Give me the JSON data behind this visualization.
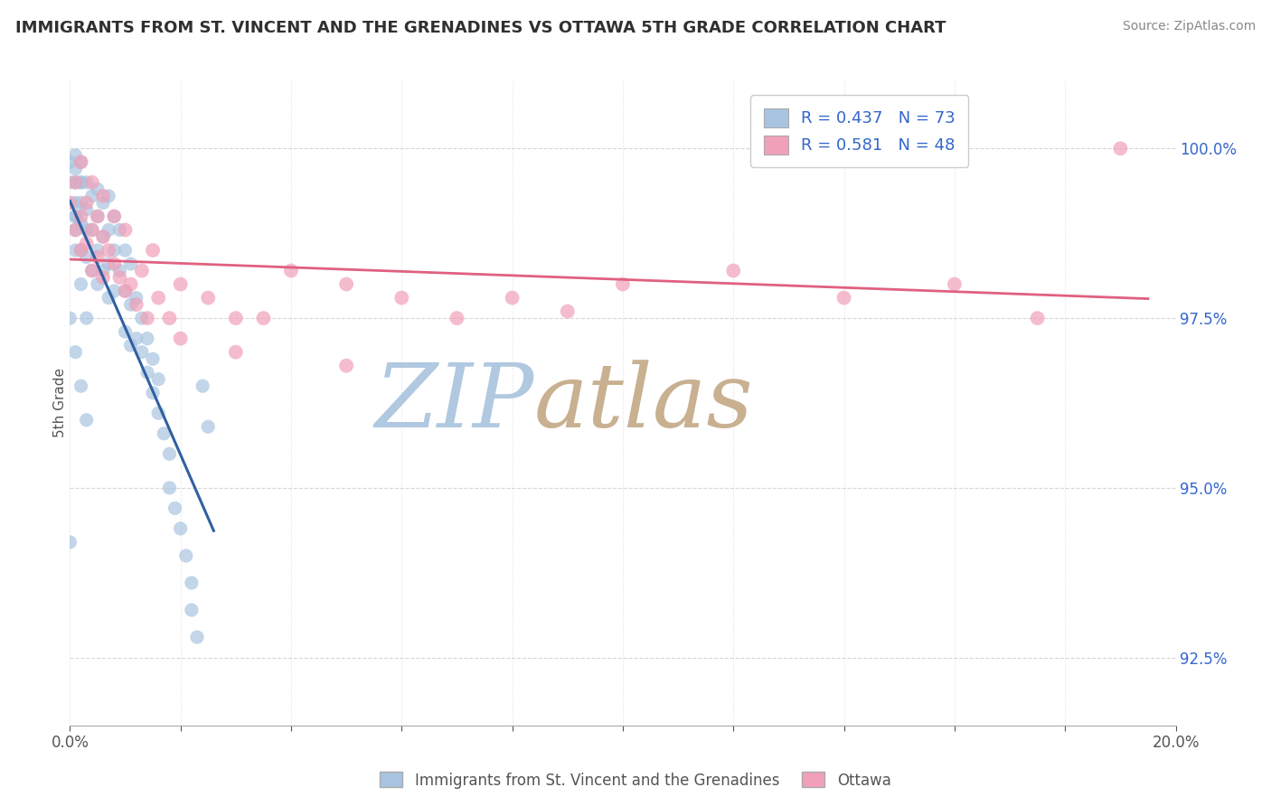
{
  "title": "IMMIGRANTS FROM ST. VINCENT AND THE GRENADINES VS OTTAWA 5TH GRADE CORRELATION CHART",
  "source": "Source: ZipAtlas.com",
  "ylabel": "5th Grade",
  "legend_label_blue": "Immigrants from St. Vincent and the Grenadines",
  "legend_label_pink": "Ottawa",
  "R_blue": 0.437,
  "N_blue": 73,
  "R_pink": 0.581,
  "N_pink": 48,
  "blue_color": "#a8c4e0",
  "pink_color": "#f0a0b8",
  "blue_line_color": "#3060a0",
  "pink_line_color": "#e06080",
  "watermark_zip_color": "#b0c8e0",
  "watermark_atlas_color": "#c8b090",
  "title_color": "#303030",
  "annotation_color": "#3366cc",
  "xlim": [
    0.0,
    0.2
  ],
  "ylim": [
    91.5,
    101.0
  ],
  "yticks": [
    92.5,
    95.0,
    97.5,
    100.0
  ],
  "yticklabels": [
    "92.5%",
    "95.0%",
    "97.5%",
    "100.0%"
  ],
  "blue_scatter_x": [
    0.0,
    0.0,
    0.001,
    0.001,
    0.001,
    0.001,
    0.001,
    0.002,
    0.002,
    0.002,
    0.002,
    0.002,
    0.003,
    0.003,
    0.003,
    0.003,
    0.004,
    0.004,
    0.004,
    0.005,
    0.005,
    0.005,
    0.005,
    0.006,
    0.006,
    0.006,
    0.007,
    0.007,
    0.007,
    0.007,
    0.008,
    0.008,
    0.008,
    0.009,
    0.009,
    0.01,
    0.01,
    0.01,
    0.011,
    0.011,
    0.011,
    0.012,
    0.012,
    0.013,
    0.013,
    0.014,
    0.014,
    0.015,
    0.015,
    0.016,
    0.016,
    0.017,
    0.018,
    0.018,
    0.019,
    0.02,
    0.021,
    0.022,
    0.022,
    0.023,
    0.024,
    0.025,
    0.0,
    0.001,
    0.002,
    0.003,
    0.001,
    0.002,
    0.003,
    0.001,
    0.002,
    0.001,
    0.0
  ],
  "blue_scatter_y": [
    99.8,
    99.5,
    99.9,
    99.7,
    99.5,
    99.2,
    99.0,
    99.8,
    99.5,
    99.2,
    98.9,
    98.5,
    99.5,
    99.1,
    98.8,
    98.4,
    99.3,
    98.8,
    98.2,
    99.4,
    99.0,
    98.5,
    98.0,
    99.2,
    98.7,
    98.2,
    99.3,
    98.8,
    98.3,
    97.8,
    99.0,
    98.5,
    97.9,
    98.8,
    98.2,
    98.5,
    97.9,
    97.3,
    98.3,
    97.7,
    97.1,
    97.8,
    97.2,
    97.5,
    97.0,
    97.2,
    96.7,
    96.9,
    96.4,
    96.6,
    96.1,
    95.8,
    95.5,
    95.0,
    94.7,
    94.4,
    94.0,
    93.6,
    93.2,
    92.8,
    96.5,
    95.9,
    97.5,
    97.0,
    96.5,
    96.0,
    98.5,
    98.0,
    97.5,
    99.0,
    99.5,
    98.8,
    94.2
  ],
  "pink_scatter_x": [
    0.0,
    0.001,
    0.001,
    0.002,
    0.002,
    0.003,
    0.003,
    0.004,
    0.004,
    0.005,
    0.005,
    0.006,
    0.006,
    0.007,
    0.008,
    0.009,
    0.01,
    0.011,
    0.012,
    0.013,
    0.014,
    0.016,
    0.018,
    0.02,
    0.025,
    0.03,
    0.035,
    0.04,
    0.05,
    0.06,
    0.07,
    0.08,
    0.09,
    0.1,
    0.12,
    0.14,
    0.16,
    0.175,
    0.19,
    0.002,
    0.004,
    0.006,
    0.008,
    0.01,
    0.015,
    0.02,
    0.03,
    0.05
  ],
  "pink_scatter_y": [
    99.2,
    99.5,
    98.8,
    99.0,
    98.5,
    99.2,
    98.6,
    98.8,
    98.2,
    99.0,
    98.4,
    98.7,
    98.1,
    98.5,
    98.3,
    98.1,
    97.9,
    98.0,
    97.7,
    98.2,
    97.5,
    97.8,
    97.5,
    98.0,
    97.8,
    97.5,
    97.5,
    98.2,
    98.0,
    97.8,
    97.5,
    97.8,
    97.6,
    98.0,
    98.2,
    97.8,
    98.0,
    97.5,
    100.0,
    99.8,
    99.5,
    99.3,
    99.0,
    98.8,
    98.5,
    97.2,
    97.0,
    96.8
  ]
}
